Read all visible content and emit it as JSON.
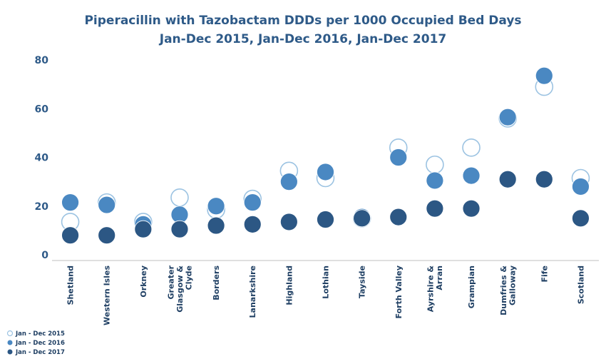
{
  "chart_data": {
    "type": "scatter",
    "title": [
      "Piperacillin with Tazobactam DDDs per 1000 Occupied Bed Days",
      "Jan-Dec 2015, Jan-Dec 2016, Jan-Dec 2017"
    ],
    "xlabel": "",
    "ylabel": "",
    "ylim": [
      0,
      80
    ],
    "yticks": [
      0,
      20,
      40,
      60,
      80
    ],
    "grid": false,
    "legend_position": "bottom-left",
    "categories": [
      [
        "Shetland"
      ],
      [
        "Western Isles"
      ],
      [
        "Orkney"
      ],
      [
        "Greater",
        "Glasgow &",
        "Clyde"
      ],
      [
        "Borders"
      ],
      [
        "Lanarkshire"
      ],
      [
        "Highland"
      ],
      [
        "Lothian"
      ],
      [
        "Tayside"
      ],
      [
        "Forth Valley"
      ],
      [
        "Ayrshire &",
        "Arran"
      ],
      [
        "Grampian"
      ],
      [
        "Dumfries &",
        "Galloway"
      ],
      [
        "Fife"
      ],
      [
        "Scotland"
      ]
    ],
    "series": [
      {
        "name": "Jan - Dec 2015",
        "style": "hollow",
        "color": "#9cc3e2",
        "values": [
          13.5,
          21.5,
          13.5,
          23.5,
          18.5,
          23,
          34.5,
          31.5,
          15,
          44,
          37,
          44,
          56,
          69,
          31.5
        ]
      },
      {
        "name": "Jan - Dec 2016",
        "style": "filled",
        "color": "#4a88c2",
        "values": [
          21.5,
          20.5,
          12.5,
          16.5,
          20,
          21.5,
          30,
          34,
          15.5,
          40,
          30.5,
          32.5,
          56.5,
          73.5,
          28
        ]
      },
      {
        "name": "Jan - Dec 2017",
        "style": "filled",
        "color": "#2c5784",
        "values": [
          8,
          8,
          10.5,
          10.5,
          12,
          12.5,
          13.5,
          14.5,
          15,
          15.5,
          19,
          19,
          31,
          31,
          15
        ]
      }
    ]
  }
}
